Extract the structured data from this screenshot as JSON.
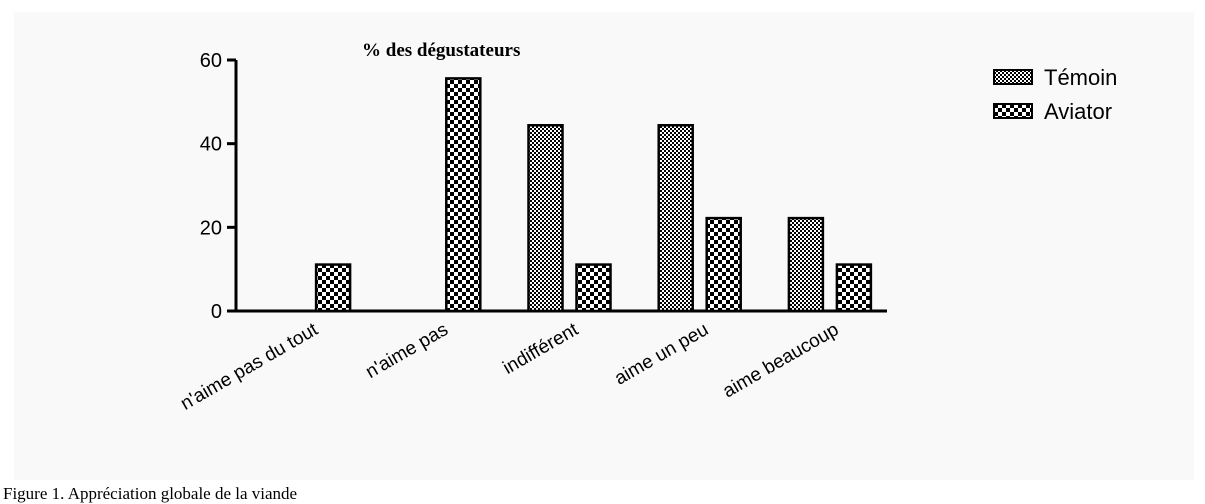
{
  "caption": "Figure 1. Appréciation globale de la viande",
  "chart_data": {
    "type": "bar",
    "title": "% des dégustateurs",
    "xlabel": "",
    "ylabel": "",
    "ylim": [
      0,
      60
    ],
    "yticks": [
      0,
      20,
      40,
      60
    ],
    "categories": [
      "n'aime pas du tout",
      "n'aime pas",
      "indifférent",
      "aime un peu",
      "aime beaucoup"
    ],
    "series": [
      {
        "name": "Témoin",
        "values": [
          0,
          0,
          44.4,
          44.4,
          22.2
        ],
        "pattern": "fine-checker"
      },
      {
        "name": "Aviator",
        "values": [
          11.1,
          55.6,
          11.1,
          22.2,
          11.1
        ],
        "pattern": "coarse-checker"
      }
    ],
    "legend": "top-right",
    "grid": false
  }
}
